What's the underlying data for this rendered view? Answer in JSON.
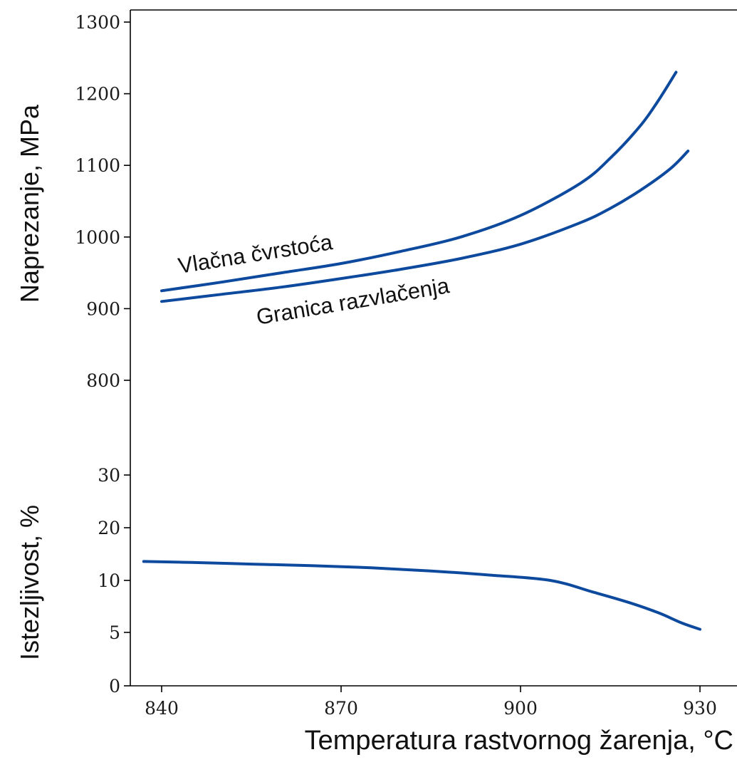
{
  "chart_data": {
    "type": "line",
    "xlabel": "Temperatura rastvornog žarenja, °C",
    "xticks": [
      840,
      870,
      900,
      930
    ],
    "xlim": [
      838,
      933
    ],
    "grid": false,
    "panels": {
      "stress": {
        "ylabel": "Naprezanje, MPa",
        "yticks": [
          800,
          900,
          1000,
          1100,
          1200,
          1300
        ],
        "ylim": [
          800,
          1300
        ],
        "series": [
          {
            "name": "Vlačna čvrstoća",
            "color": "#0d4a9e",
            "x": [
              840,
              850,
              860,
              870,
              880,
              890,
              900,
              910,
              915,
              920,
              923,
              926
            ],
            "y": [
              925,
              937,
              950,
              963,
              980,
              1000,
              1030,
              1075,
              1110,
              1155,
              1190,
              1230
            ]
          },
          {
            "name": "Granica razvlačenja",
            "color": "#0d4a9e",
            "x": [
              840,
              850,
              860,
              870,
              880,
              890,
              900,
              910,
              915,
              920,
              925,
              928
            ],
            "y": [
              910,
              920,
              930,
              942,
              955,
              970,
              990,
              1020,
              1040,
              1065,
              1095,
              1120
            ]
          }
        ]
      },
      "elongation": {
        "ylabel": "Istezljivost, %",
        "yticks": [
          0,
          5,
          10,
          20,
          30
        ],
        "ylim": [
          0,
          30
        ],
        "series": [
          {
            "name": "",
            "color": "#0d4a9e",
            "x": [
              837,
              845,
              855,
              865,
              875,
              885,
              895,
              905,
              912,
              918,
              923,
              927,
              930
            ],
            "y": [
              13.6,
              13.4,
              13.1,
              12.8,
              12.4,
              11.8,
              11.0,
              10.0,
              8.9,
              7.9,
              6.9,
              5.9,
              5.3
            ]
          }
        ]
      }
    }
  }
}
